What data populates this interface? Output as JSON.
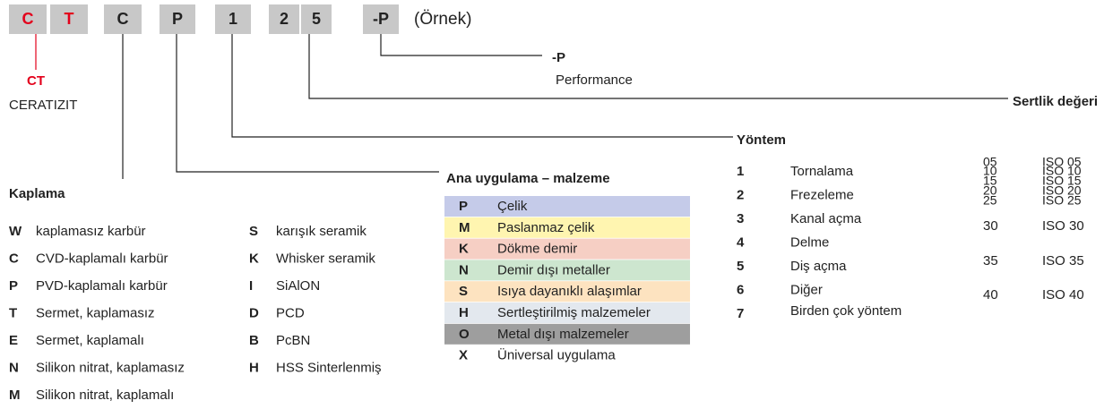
{
  "code": {
    "boxes": [
      "C",
      "T",
      "C",
      "P",
      "1",
      "2",
      "5",
      "-P"
    ],
    "example": "(Örnek)"
  },
  "brand": {
    "code": "CT",
    "name": "CERATIZIT"
  },
  "performance": {
    "code": "-P",
    "label": "Performance"
  },
  "hardness": {
    "title": "Sertlik değeri",
    "items": [
      {
        "value": "05",
        "label": "ISO 05"
      },
      {
        "value": "10",
        "label": "ISO 10"
      },
      {
        "value": "15",
        "label": "ISO 15"
      },
      {
        "value": "20",
        "label": "ISO 20"
      },
      {
        "value": "25",
        "label": "ISO 25"
      },
      {
        "value": "30",
        "label": "ISO 30"
      },
      {
        "value": "35",
        "label": "ISO 35"
      },
      {
        "value": "40",
        "label": "ISO 40"
      }
    ]
  },
  "method": {
    "title": "Yöntem",
    "items": [
      {
        "code": "1",
        "label": "Tornalama"
      },
      {
        "code": "2",
        "label": "Frezeleme"
      },
      {
        "code": "3",
        "label": "Kanal açma"
      },
      {
        "code": "4",
        "label": "Delme"
      },
      {
        "code": "5",
        "label": "Diş açma"
      },
      {
        "code": "6",
        "label": "Diğer"
      },
      {
        "code": "7",
        "label": "Birden çok yöntem"
      }
    ]
  },
  "application": {
    "title": "Ana uygulama – malzeme",
    "items": [
      {
        "code": "P",
        "label": "Çelik"
      },
      {
        "code": "M",
        "label": "Paslanmaz çelik"
      },
      {
        "code": "K",
        "label": "Dökme demir"
      },
      {
        "code": "N",
        "label": "Demir dışı metaller"
      },
      {
        "code": "S",
        "label": "Isıya dayanıklı alaşımlar"
      },
      {
        "code": "H",
        "label": "Sertleştirilmiş malzemeler"
      },
      {
        "code": "O",
        "label": "Metal dışı malzemeler"
      },
      {
        "code": "X",
        "label": "Üniversal uygulama"
      }
    ]
  },
  "coating": {
    "title": "Kaplama",
    "items": [
      {
        "code": "W",
        "label": "kaplamasız karbür"
      },
      {
        "code": "C",
        "label": "CVD-kaplamalı karbür"
      },
      {
        "code": "P",
        "label": "PVD-kaplamalı karbür"
      },
      {
        "code": "T",
        "label": "Sermet, kaplamasız"
      },
      {
        "code": "E",
        "label": "Sermet, kaplamalı"
      },
      {
        "code": "N",
        "label": "Silikon nitrat, kaplamasız"
      },
      {
        "code": "M",
        "label": "Silikon nitrat, kaplamalı"
      },
      {
        "code": "S",
        "label": "karışık seramik"
      },
      {
        "code": "K",
        "label": "Whisker seramik"
      },
      {
        "code": "I",
        "label": "SiAlON"
      },
      {
        "code": "D",
        "label": "PCD"
      },
      {
        "code": "B",
        "label": "PcBN"
      },
      {
        "code": "H",
        "label": "HSS Sinterlenmiş"
      }
    ]
  }
}
